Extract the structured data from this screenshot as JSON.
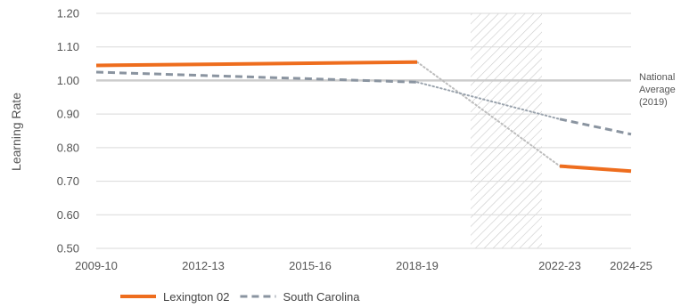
{
  "chart_data": {
    "type": "line",
    "title": "",
    "xlabel": "",
    "ylabel": "Learning Rate",
    "x_ticks": [
      "2009-10",
      "2012-13",
      "2015-16",
      "2018-19",
      "2022-23",
      "2024-25"
    ],
    "x_range": [
      2009,
      2024
    ],
    "y_ticks": [
      "0.50",
      "0.60",
      "0.70",
      "0.80",
      "0.90",
      "1.00",
      "1.10",
      "1.20"
    ],
    "ylim": [
      0.5,
      1.2
    ],
    "grid": "horizontal",
    "reference_line": {
      "value": 1.0,
      "label": [
        "National",
        "Average",
        "(2019)"
      ]
    },
    "gap_period": [
      2019.5,
      2021.5
    ],
    "legend_position": "bottom-left",
    "series": [
      {
        "name": "Lexington 02",
        "color": "#ee6d1e",
        "style": "solid",
        "segments": [
          [
            [
              2009,
              1.045
            ],
            [
              2018,
              1.055
            ]
          ],
          [
            [
              2022,
              0.745
            ],
            [
              2024,
              0.73
            ]
          ]
        ],
        "bridge": [
          [
            2018,
            1.055
          ],
          [
            2022,
            0.745
          ]
        ]
      },
      {
        "name": "South Carolina",
        "color": "#8a94a0",
        "style": "dashed",
        "segments": [
          [
            [
              2009,
              1.025
            ],
            [
              2012,
              1.015
            ],
            [
              2015,
              1.005
            ],
            [
              2018,
              0.995
            ]
          ],
          [
            [
              2022,
              0.885
            ],
            [
              2024,
              0.84
            ]
          ]
        ],
        "bridge": [
          [
            2018,
            0.995
          ],
          [
            2022,
            0.885
          ]
        ]
      }
    ]
  }
}
